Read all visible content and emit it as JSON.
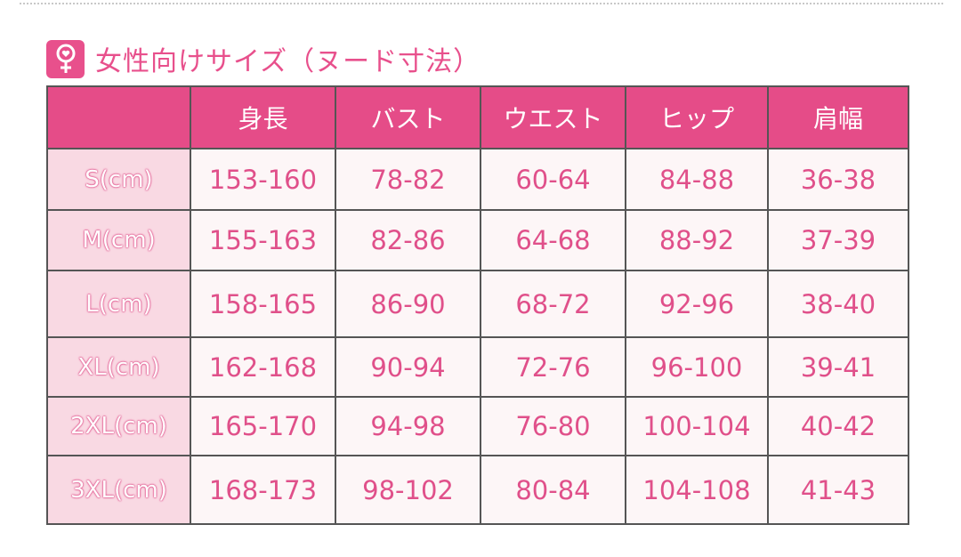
{
  "title": "女性向けサイズ（ヌード寸法）",
  "icon": "female-symbol-icon",
  "colors": {
    "accent": "#e54c88",
    "label_bg": "#f9d9e3",
    "cell_bg": "#fdf6f7",
    "text": "#e0508a"
  },
  "table": {
    "headers": [
      "",
      "身長",
      "バスト",
      "ウエスト",
      "ヒップ",
      "肩幅"
    ],
    "rows": [
      [
        "S(cm)",
        "153-160",
        "78-82",
        "60-64",
        "84-88",
        "36-38"
      ],
      [
        "M(cm)",
        "155-163",
        "82-86",
        "64-68",
        "88-92",
        "37-39"
      ],
      [
        "L(cm)",
        "158-165",
        "86-90",
        "68-72",
        "92-96",
        "38-40"
      ],
      [
        "XL(cm)",
        "162-168",
        "90-94",
        "72-76",
        "96-100",
        "39-41"
      ],
      [
        "2XL(cm)",
        "165-170",
        "94-98",
        "76-80",
        "100-104",
        "40-42"
      ],
      [
        "3XL(cm)",
        "168-173",
        "98-102",
        "80-84",
        "104-108",
        "41-43"
      ]
    ]
  }
}
